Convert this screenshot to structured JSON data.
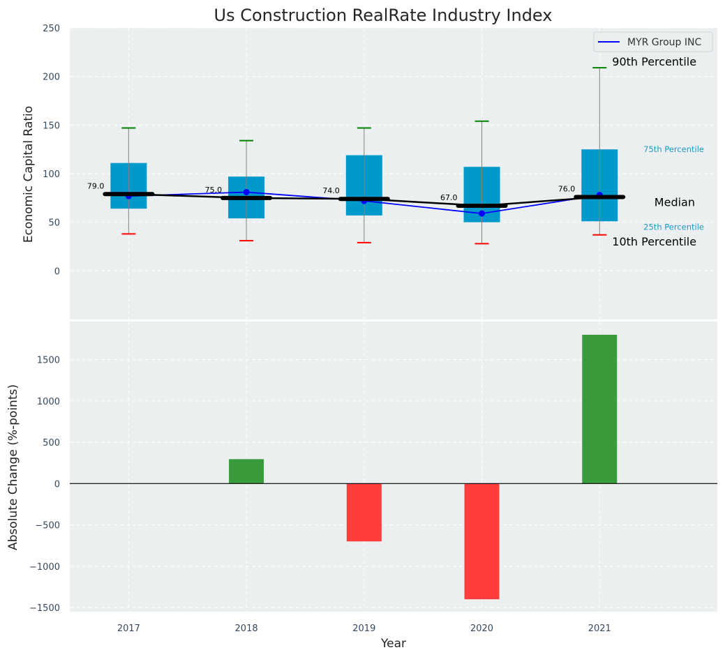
{
  "chart_data": [
    {
      "type": "box",
      "title": "Us Construction RealRate Industry Index",
      "xlabel": "",
      "ylabel": "Economic Capital Ratio",
      "ylim": [
        -50,
        250
      ],
      "xlim": [
        2016.5,
        2022.0
      ],
      "yticks": [
        0,
        50,
        100,
        150,
        200,
        250
      ],
      "grid": true,
      "categories": [
        "2017",
        "2018",
        "2019",
        "2020",
        "2021"
      ],
      "x": [
        2017,
        2018,
        2019,
        2020,
        2021
      ],
      "percentile_90": [
        147,
        134,
        147,
        154,
        209
      ],
      "percentile_75": [
        111,
        97,
        119,
        107,
        125
      ],
      "median": [
        79.0,
        75.0,
        74.0,
        67.0,
        76.0
      ],
      "percentile_25": [
        64,
        54,
        57,
        50,
        51
      ],
      "percentile_10": [
        38,
        31,
        29,
        28,
        37
      ],
      "median_labels": [
        "79.0",
        "75.0",
        "74.0",
        "67.0",
        "76.0"
      ],
      "series": [
        {
          "name": "MYR Group INC",
          "values": [
            77,
            81,
            72,
            59,
            78
          ],
          "color": "#0000ff"
        }
      ],
      "legend": {
        "position": "top-right",
        "entries": [
          "MYR Group INC"
        ]
      },
      "annotations": {
        "p90": "90th Percentile",
        "p75": "75th Percentile",
        "median": "Median",
        "p25": "25th Percentile",
        "p10": "10th Percentile"
      },
      "colors": {
        "box": "#0099cc",
        "median_line": "#000000",
        "p90_cap": "#008000",
        "p10_cap": "#ff0000",
        "whisker": "#808080",
        "background": "#ebeff0",
        "small_annot": "#1a9bc7"
      }
    },
    {
      "type": "bar",
      "title": "",
      "xlabel": "Year",
      "ylabel": "Absolute Change (%-points)",
      "ylim": [
        -1550,
        1960
      ],
      "xlim": [
        2016.5,
        2022.0
      ],
      "yticks": [
        -1500,
        -1000,
        -500,
        0,
        500,
        1000,
        1500
      ],
      "ytick_labels": [
        "−1500",
        "−1000",
        "−500",
        "0",
        "500",
        "1000",
        "1500"
      ],
      "grid": true,
      "categories": [
        "2017",
        "2018",
        "2019",
        "2020",
        "2021"
      ],
      "x": [
        2017,
        2018,
        2019,
        2020,
        2021
      ],
      "values": [
        0,
        295,
        -700,
        -1400,
        1800
      ],
      "colors": {
        "positive": "#3a9b3c",
        "negative": "#ff3d3d"
      }
    }
  ]
}
